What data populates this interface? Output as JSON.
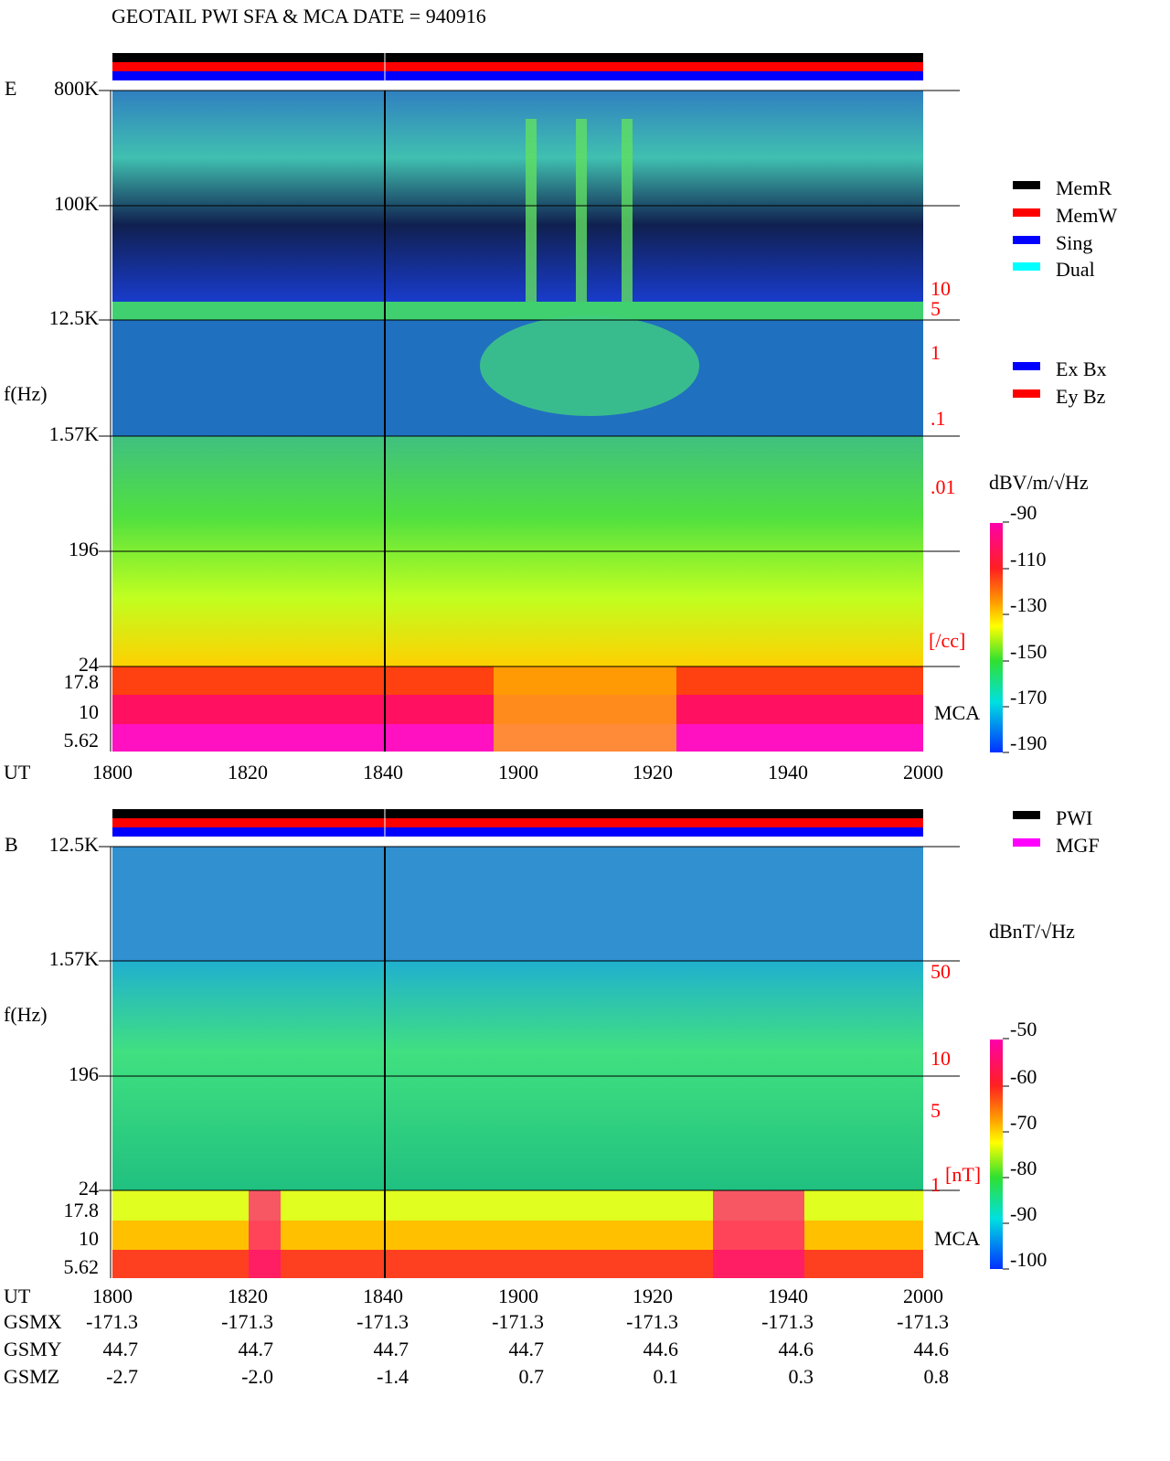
{
  "title": "GEOTAIL  PWI SFA & MCA   DATE = 940916",
  "panels": [
    {
      "label": "E",
      "ylabel": "f(Hz)",
      "freq_ticks": [
        "800K",
        "100K",
        "12.5K",
        "1.57K",
        "196",
        "24",
        "17.8",
        "10",
        "5.62"
      ],
      "right_ticks": [
        "10",
        "5",
        "1",
        ".1",
        ".01"
      ],
      "right_unit": "[/cc]",
      "mca": "MCA",
      "colorbar_unit": "dBV/m/√Hz",
      "colorbar_ticks": [
        -90,
        -110,
        -130,
        -150,
        -170,
        -190
      ],
      "legend": [
        {
          "name": "MemR",
          "color": "#000000"
        },
        {
          "name": "MemW",
          "color": "#ff0000"
        },
        {
          "name": "Sing",
          "color": "#0000ff"
        },
        {
          "name": "Dual",
          "color": "#00ffff"
        },
        {
          "name": "Ex Bx",
          "color": "#0000ff"
        },
        {
          "name": "Ey Bz",
          "color": "#ff0000"
        }
      ]
    },
    {
      "label": "B",
      "ylabel": "f(Hz)",
      "freq_ticks": [
        "12.5K",
        "1.57K",
        "196",
        "24",
        "17.8",
        "10",
        "5.62"
      ],
      "right_ticks": [
        "50",
        "10",
        "5",
        "1"
      ],
      "right_unit": "[nT]",
      "mca": "MCA",
      "colorbar_unit": "dBnT/√Hz",
      "colorbar_ticks": [
        -50,
        -60,
        -70,
        -80,
        -90,
        -100
      ],
      "legend": [
        {
          "name": "PWI",
          "color": "#000000"
        },
        {
          "name": "MGF",
          "color": "#ff00ff"
        }
      ]
    }
  ],
  "time_axis": {
    "label": "UT",
    "ticks": [
      "1800",
      "1820",
      "1840",
      "1900",
      "1920",
      "1940",
      "2000"
    ]
  },
  "orbit": [
    {
      "name": "GSMX",
      "values": [
        "-171.3",
        "-171.3",
        "-171.3",
        "-171.3",
        "-171.3",
        "-171.3",
        "-171.3"
      ]
    },
    {
      "name": "GSMY",
      "values": [
        "44.7",
        "44.7",
        "44.7",
        "44.7",
        "44.6",
        "44.6",
        "44.6"
      ]
    },
    {
      "name": "GSMZ",
      "values": [
        "-2.7",
        "-2.0",
        "-1.4",
        "0.7",
        "0.1",
        "0.3",
        "0.8"
      ]
    }
  ]
}
